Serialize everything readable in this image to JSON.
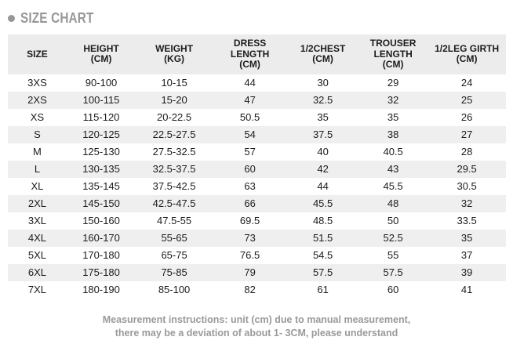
{
  "page": {
    "title": "SIZE CHART"
  },
  "chart_data": {
    "type": "table",
    "title": "SIZE CHART",
    "columns": [
      "SIZE",
      "HEIGHT\n(CM)",
      "WEIGHT\n(KG)",
      "DRESS\nLENGTH\n(CM)",
      "1/2CHEST\n(CM)",
      "TROUSER\nLENGTH\n(CM)",
      "1/2LEG GIRTH\n(CM)"
    ],
    "rows": [
      [
        "3XS",
        "90-100",
        "10-15",
        "44",
        "30",
        "29",
        "24"
      ],
      [
        "2XS",
        "100-115",
        "15-20",
        "47",
        "32.5",
        "32",
        "25"
      ],
      [
        "XS",
        "115-120",
        "20-22.5",
        "50.5",
        "35",
        "35",
        "26"
      ],
      [
        "S",
        "120-125",
        "22.5-27.5",
        "54",
        "37.5",
        "38",
        "27"
      ],
      [
        "M",
        "125-130",
        "27.5-32.5",
        "57",
        "40",
        "40.5",
        "28"
      ],
      [
        "L",
        "130-135",
        "32.5-37.5",
        "60",
        "42",
        "43",
        "29.5"
      ],
      [
        "XL",
        "135-145",
        "37.5-42.5",
        "63",
        "44",
        "45.5",
        "30.5"
      ],
      [
        "2XL",
        "145-150",
        "42.5-47.5",
        "66",
        "45.5",
        "48",
        "32"
      ],
      [
        "3XL",
        "150-160",
        "47.5-55",
        "69.5",
        "48.5",
        "50",
        "33.5"
      ],
      [
        "4XL",
        "160-170",
        "55-65",
        "73",
        "51.5",
        "52.5",
        "35"
      ],
      [
        "5XL",
        "170-180",
        "65-75",
        "76.5",
        "54.5",
        "55",
        "37"
      ],
      [
        "6XL",
        "175-180",
        "75-85",
        "79",
        "57.5",
        "57.5",
        "39"
      ],
      [
        "7XL",
        "180-190",
        "85-100",
        "82",
        "61",
        "60",
        "41"
      ]
    ],
    "notes": [
      "Measurement instructions: unit (cm) due to manual measurement,",
      "there may be a deviation of about 1- 3CM, please understand"
    ],
    "layout": {
      "legend": "none",
      "grid": "row-stripes"
    }
  },
  "colors": {
    "title_gray": "#979797",
    "header_bg": "#ececec",
    "stripe_bg": "#efefef",
    "table_text": "#1c1c1c",
    "note_gray": "#9a9a9a",
    "background": "#ffffff"
  }
}
